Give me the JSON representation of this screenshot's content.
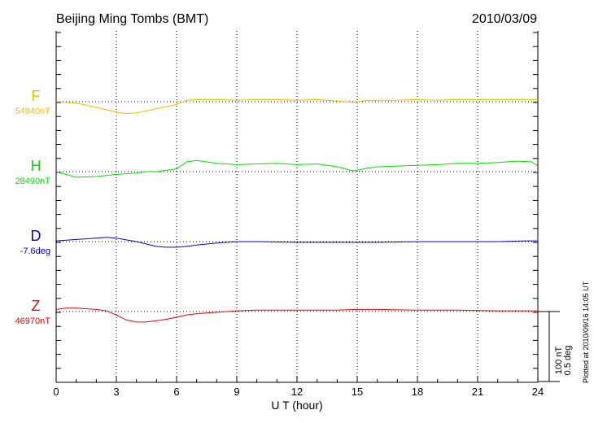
{
  "chart_data": {
    "type": "line",
    "title": "Beijing Ming Tombs (BMT)",
    "date": "2010/03/09",
    "xlabel": "U T (hour)",
    "xlim": [
      0,
      24
    ],
    "xticks": [
      "0",
      "3",
      "6",
      "9",
      "12",
      "15",
      "18",
      "21",
      "24"
    ],
    "grid": "vertical dotted every 3 h",
    "scale_bar": {
      "line1": "100 nT",
      "line2": "0.5 deg",
      "nT": 100
    },
    "footer": "Plotted at 2010/09/16 14:05 UT",
    "series_unit": "offset from baseline, nT",
    "series": [
      {
        "name": "F",
        "baseline_label": "54940nT",
        "color": "#f5b800",
        "x": [
          0,
          1,
          2,
          3,
          3.5,
          4,
          5,
          6,
          6.5,
          7,
          8,
          9,
          10,
          11,
          12,
          13,
          14,
          14.8,
          15.5,
          17,
          18,
          19,
          20,
          21,
          22,
          23,
          24
        ],
        "y": [
          0,
          -2,
          -8,
          -15,
          -17,
          -16,
          -10,
          -4,
          2,
          3,
          3,
          2,
          3,
          3,
          2,
          3,
          1,
          -1,
          2,
          2,
          3,
          2,
          3,
          3,
          3,
          3,
          3
        ]
      },
      {
        "name": "H",
        "baseline_label": "28490nT",
        "color": "#00e000",
        "x": [
          0,
          0.5,
          1,
          2,
          3,
          4,
          4.5,
          5,
          6,
          6.5,
          7,
          8,
          9,
          10,
          11,
          12,
          13,
          14,
          14.8,
          15.5,
          16,
          17,
          18,
          19,
          20,
          21,
          22,
          23,
          23.7,
          24
        ],
        "y": [
          0,
          -4,
          -8,
          -7,
          -4,
          -2,
          0,
          0,
          4,
          14,
          16,
          12,
          10,
          11,
          12,
          10,
          11,
          7,
          1,
          5,
          7,
          8,
          9,
          10,
          12,
          12,
          13,
          15,
          14,
          8
        ]
      },
      {
        "name": "D",
        "baseline_label": "-7.6deg",
        "color": "#0000e0",
        "x": [
          0,
          1,
          2,
          2.5,
          3,
          4,
          5,
          5.5,
          6,
          6.5,
          7,
          8,
          9,
          10,
          12,
          14,
          15,
          16,
          18,
          20,
          22,
          23.5,
          24
        ],
        "y": [
          1,
          3,
          5,
          6,
          5,
          0,
          -7,
          -8,
          -8,
          -7,
          -5,
          -2,
          0,
          0,
          -1,
          -1,
          -1,
          -1,
          0,
          0,
          0,
          1,
          1
        ]
      },
      {
        "name": "Z",
        "baseline_label": "46970nT",
        "color": "#ee0000",
        "x": [
          0,
          0.5,
          1,
          1.5,
          2,
          2.5,
          3,
          3.5,
          4,
          4.5,
          5,
          5.5,
          6,
          6.5,
          7,
          8,
          9,
          10,
          12,
          14,
          15,
          16,
          18,
          20,
          22,
          24
        ],
        "y": [
          3,
          5,
          5,
          4,
          3,
          1,
          -5,
          -12,
          -15,
          -15,
          -13,
          -11,
          -8,
          -5,
          -3,
          -1,
          1,
          2,
          2,
          2,
          3,
          3,
          2,
          2,
          1,
          1
        ]
      }
    ]
  }
}
